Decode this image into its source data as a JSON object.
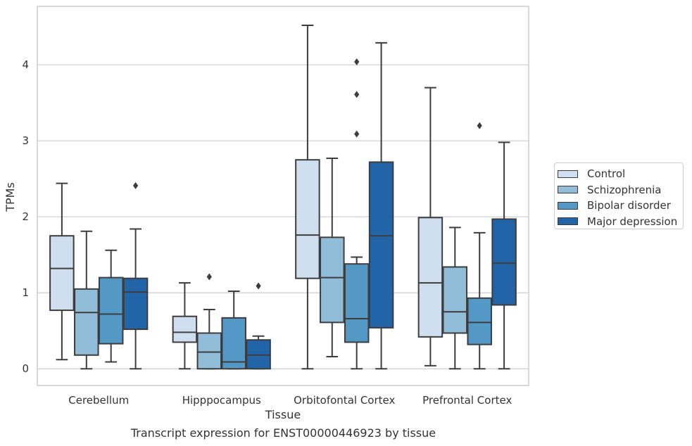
{
  "caption": "Transcript expression for ENST00000446923 by tissue",
  "chart_data": {
    "type": "box",
    "title": "",
    "xlabel": "Tissue",
    "ylabel": "TPMs",
    "ylim": [
      -0.22,
      4.77
    ],
    "yticks": [
      0,
      1,
      2,
      3,
      4
    ],
    "grid": "horizontal",
    "legend_placement": "center-right outside",
    "categories": [
      "Cerebellum",
      "Hipppocampus",
      "Orbitofontal Cortex",
      "Prefrontal Cortex"
    ],
    "series": [
      {
        "name": "Control",
        "color": "#d0dff0",
        "boxes": [
          {
            "whislo": 0.12,
            "q1": 0.77,
            "med": 1.32,
            "q3": 1.75,
            "whishi": 2.44,
            "fliers": []
          },
          {
            "whislo": 0.0,
            "q1": 0.35,
            "med": 0.48,
            "q3": 0.69,
            "whishi": 1.13,
            "fliers": []
          },
          {
            "whislo": 0.0,
            "q1": 1.19,
            "med": 1.76,
            "q3": 2.75,
            "whishi": 4.52,
            "fliers": []
          },
          {
            "whislo": 0.04,
            "q1": 0.42,
            "med": 1.13,
            "q3": 1.99,
            "whishi": 3.7,
            "fliers": []
          }
        ]
      },
      {
        "name": "Schizophrenia",
        "color": "#92bdd8",
        "boxes": [
          {
            "whislo": 0.0,
            "q1": 0.18,
            "med": 0.74,
            "q3": 1.05,
            "whishi": 1.81,
            "fliers": []
          },
          {
            "whislo": 0.0,
            "q1": 0.0,
            "med": 0.22,
            "q3": 0.47,
            "whishi": 0.78,
            "fliers": [
              1.21
            ]
          },
          {
            "whislo": 0.16,
            "q1": 0.61,
            "med": 1.2,
            "q3": 1.73,
            "whishi": 2.77,
            "fliers": []
          },
          {
            "whislo": 0.0,
            "q1": 0.47,
            "med": 0.75,
            "q3": 1.34,
            "whishi": 1.86,
            "fliers": []
          }
        ]
      },
      {
        "name": "Bipolar disorder",
        "color": "#5498c6",
        "boxes": [
          {
            "whislo": 0.09,
            "q1": 0.33,
            "med": 0.72,
            "q3": 1.2,
            "whishi": 1.56,
            "fliers": []
          },
          {
            "whislo": 0.0,
            "q1": 0.0,
            "med": 0.09,
            "q3": 0.67,
            "whishi": 1.02,
            "fliers": []
          },
          {
            "whislo": 0.0,
            "q1": 0.35,
            "med": 0.66,
            "q3": 1.38,
            "whishi": 1.47,
            "fliers": [
              3.09,
              3.61,
              4.04
            ]
          },
          {
            "whislo": 0.0,
            "q1": 0.32,
            "med": 0.61,
            "q3": 0.93,
            "whishi": 1.79,
            "fliers": [
              3.2
            ]
          }
        ]
      },
      {
        "name": "Major depression",
        "color": "#2264a8",
        "boxes": [
          {
            "whislo": 0.0,
            "q1": 0.52,
            "med": 1.01,
            "q3": 1.19,
            "whishi": 1.84,
            "fliers": [
              2.41
            ]
          },
          {
            "whislo": 0.0,
            "q1": 0.0,
            "med": 0.18,
            "q3": 0.38,
            "whishi": 0.43,
            "fliers": [
              1.09
            ]
          },
          {
            "whislo": 0.0,
            "q1": 0.54,
            "med": 1.75,
            "q3": 2.72,
            "whishi": 4.29,
            "fliers": []
          },
          {
            "whislo": 0.0,
            "q1": 0.84,
            "med": 1.39,
            "q3": 1.97,
            "whishi": 2.98,
            "fliers": []
          }
        ]
      }
    ]
  }
}
